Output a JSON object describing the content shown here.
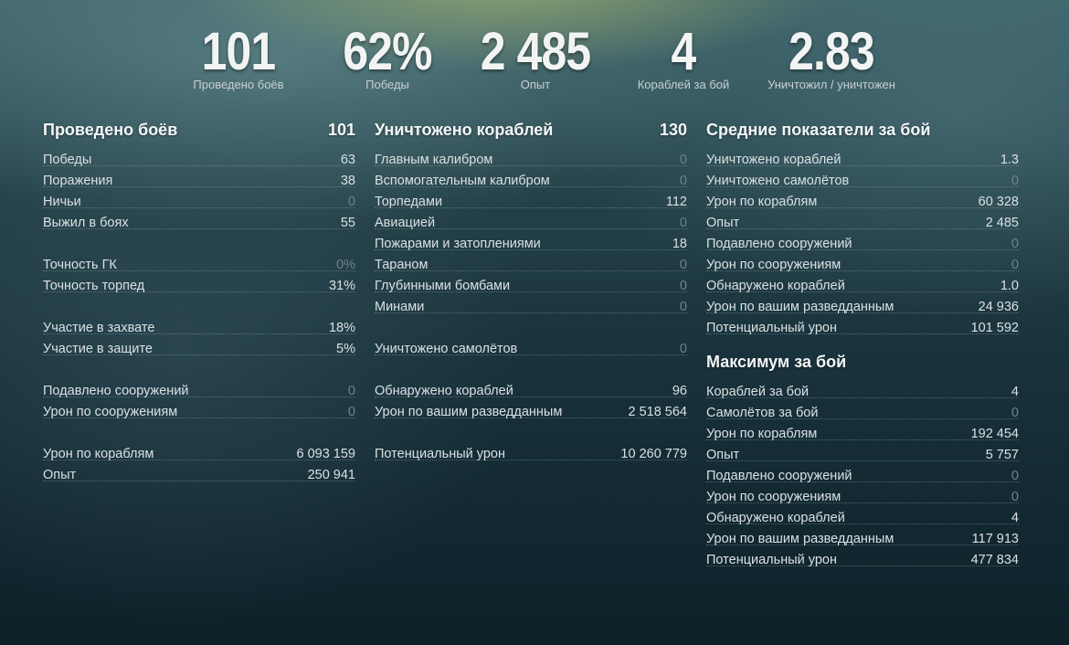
{
  "summary": [
    {
      "value": "101",
      "label": "Проведено боёв"
    },
    {
      "value": "62%",
      "label": "Победы"
    },
    {
      "value": "2 485",
      "label": "Опыт"
    },
    {
      "value": "4",
      "label": "Кораблей за бой"
    },
    {
      "value": "2.83",
      "label": "Уничтожил / уничтожен"
    }
  ],
  "battles": {
    "title": "Проведено боёв",
    "total": "101",
    "rows": [
      {
        "label": "Победы",
        "value": "63"
      },
      {
        "label": "Поражения",
        "value": "38"
      },
      {
        "label": "Ничьи",
        "value": "0"
      },
      {
        "label": "Выжил в боях",
        "value": "55"
      },
      {
        "label": "Точность ГК",
        "value": "0%"
      },
      {
        "label": "Точность торпед",
        "value": "31%"
      },
      {
        "label": "Участие в захвате",
        "value": "18%"
      },
      {
        "label": "Участие в защите",
        "value": "5%"
      },
      {
        "label": "Подавлено сооружений",
        "value": "0"
      },
      {
        "label": "Урон по сооружениям",
        "value": "0"
      },
      {
        "label": "Урон по кораблям",
        "value": "6 093 159"
      },
      {
        "label": "Опыт",
        "value": "250 941"
      }
    ]
  },
  "destroyed": {
    "title": "Уничтожено кораблей",
    "total": "130",
    "rows": [
      {
        "label": "Главным калибром",
        "value": "0"
      },
      {
        "label": "Вспомогательным калибром",
        "value": "0"
      },
      {
        "label": "Торпедами",
        "value": "112"
      },
      {
        "label": "Авиацией",
        "value": "0"
      },
      {
        "label": "Пожарами и затоплениями",
        "value": "18"
      },
      {
        "label": "Тараном",
        "value": "0"
      },
      {
        "label": "Глубинными бомбами",
        "value": "0"
      },
      {
        "label": "Минами",
        "value": "0"
      },
      {
        "label": "Уничтожено самолётов",
        "value": "0"
      },
      {
        "label": "Обнаружено кораблей",
        "value": "96"
      },
      {
        "label": "Урон по вашим разведданным",
        "value": "2 518 564"
      },
      {
        "label": "Потенциальный урон",
        "value": "10 260 779"
      }
    ]
  },
  "average": {
    "title": "Средние показатели за бой",
    "rows": [
      {
        "label": "Уничтожено кораблей",
        "value": "1.3"
      },
      {
        "label": "Уничтожено самолётов",
        "value": "0"
      },
      {
        "label": "Урон по кораблям",
        "value": "60 328"
      },
      {
        "label": "Опыт",
        "value": "2 485"
      },
      {
        "label": "Подавлено сооружений",
        "value": "0"
      },
      {
        "label": "Урон по сооружениям",
        "value": "0"
      },
      {
        "label": "Обнаружено кораблей",
        "value": "1.0"
      },
      {
        "label": "Урон по вашим разведданным",
        "value": "24 936"
      },
      {
        "label": "Потенциальный урон",
        "value": "101 592"
      }
    ]
  },
  "maximum": {
    "title": "Максимум за бой",
    "rows": [
      {
        "label": "Кораблей за бой",
        "value": "4"
      },
      {
        "label": "Самолётов за бой",
        "value": "0"
      },
      {
        "label": "Урон по кораблям",
        "value": "192 454"
      },
      {
        "label": "Опыт",
        "value": "5 757"
      },
      {
        "label": "Подавлено сооружений",
        "value": "0"
      },
      {
        "label": "Урон по сооружениям",
        "value": "0"
      },
      {
        "label": "Обнаружено кораблей",
        "value": "4"
      },
      {
        "label": "Урон по вашим разведданным",
        "value": "117 913"
      },
      {
        "label": "Потенциальный урон",
        "value": "477 834"
      }
    ]
  }
}
